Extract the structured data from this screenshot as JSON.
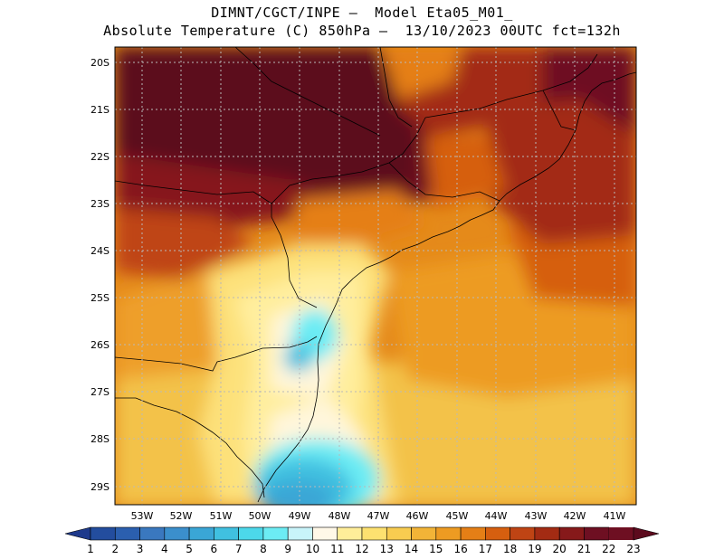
{
  "header": {
    "line1": "DIMNT/CGCT/INPE –  Model Eta05_M01_",
    "line2": "Absolute Temperature (C) 850hPa –  13/10/2023 00UTC fct=132h"
  },
  "map": {
    "lat_labels": [
      "20S",
      "21S",
      "22S",
      "23S",
      "24S",
      "25S",
      "26S",
      "27S",
      "28S",
      "29S"
    ],
    "lon_labels": [
      "53W",
      "52W",
      "51W",
      "50W",
      "49W",
      "48W",
      "47W",
      "46W",
      "45W",
      "44W",
      "43W",
      "42W",
      "41W"
    ],
    "lat_range": [
      -29.5,
      -19.5
    ],
    "lon_range": [
      -53.6,
      -40.5
    ],
    "grid": true
  },
  "colorbar": {
    "labels": [
      "1",
      "2",
      "3",
      "4",
      "5",
      "6",
      "7",
      "8",
      "9",
      "10",
      "11",
      "12",
      "13",
      "14",
      "15",
      "16",
      "17",
      "18",
      "19",
      "20",
      "21",
      "22",
      "23"
    ],
    "colors": [
      "#1e3a8c",
      "#234d9e",
      "#2b5faf",
      "#3a78bf",
      "#3b8fcc",
      "#3aa6d6",
      "#40c0e0",
      "#4cd8ea",
      "#6cecf4",
      "#c8f4fa",
      "#fff8e8",
      "#ffee99",
      "#fde170",
      "#f8cc50",
      "#f2b437",
      "#ed9b22",
      "#e57f16",
      "#d65f0f",
      "#bf4414",
      "#a32b13",
      "#86191a",
      "#6e0f22",
      "#5c0a1d"
    ]
  }
}
